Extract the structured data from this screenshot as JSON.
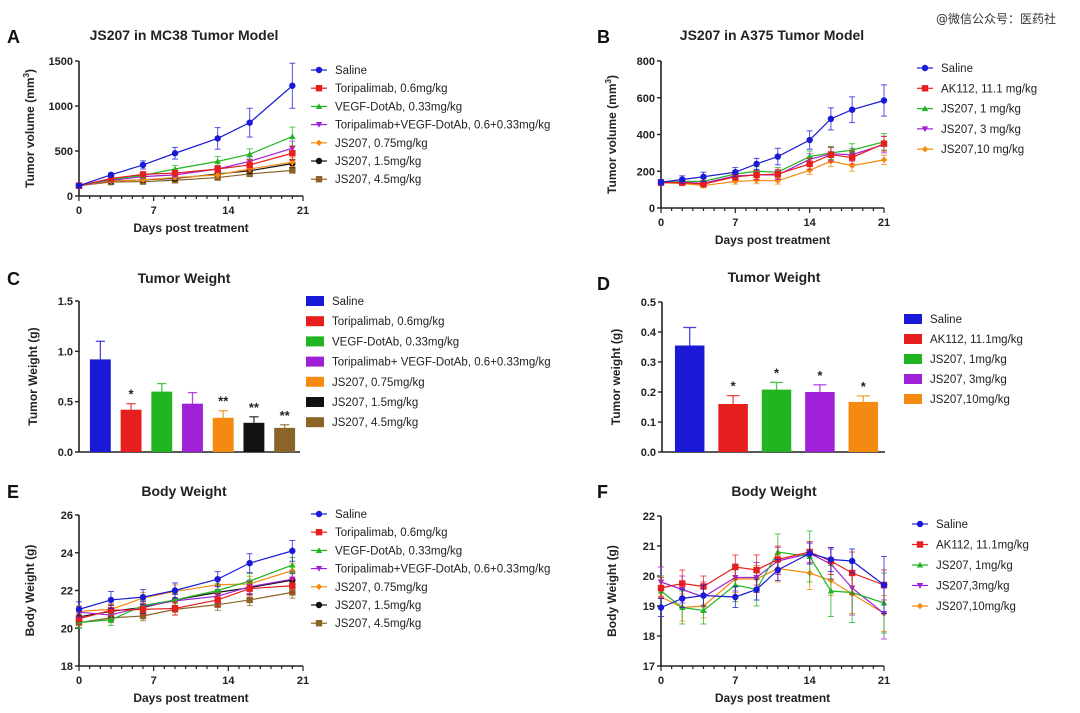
{
  "watermark": "@微信公众号：医药社",
  "colors": {
    "blue": "#1a1ad6",
    "red": "#e61e1e",
    "green": "#22b522",
    "purple": "#a020d8",
    "orange": "#f58a10",
    "black": "#111111",
    "brown": "#8b6428"
  },
  "chart_data": [
    {
      "panel": "A",
      "type": "line",
      "title": "JS207 in MC38 Tumor Model",
      "xlabel": "Days post treatment",
      "ylabel": "Tumor volume (mm³)",
      "xlim": [
        0,
        21
      ],
      "ylim": [
        0,
        1500
      ],
      "xticks": [
        0,
        7,
        14,
        21
      ],
      "yticks": [
        0,
        500,
        1000,
        1500
      ],
      "grid": false,
      "legend": "right",
      "x": [
        0,
        3,
        6,
        9,
        13,
        16,
        20
      ],
      "series": [
        {
          "name": "Saline",
          "color": "blue",
          "marker": "circle",
          "values": [
            115,
            235,
            345,
            475,
            640,
            815,
            1225
          ],
          "err": [
            15,
            20,
            45,
            65,
            120,
            160,
            250
          ]
        },
        {
          "name": "Toripalimab, 0.6mg/kg",
          "color": "red",
          "marker": "square",
          "values": [
            115,
            195,
            240,
            255,
            300,
            345,
            475
          ],
          "err": [
            10,
            20,
            25,
            30,
            40,
            55,
            80
          ]
        },
        {
          "name": "VEGF-DotAb, 0.33mg/kg",
          "color": "green",
          "marker": "triangle",
          "values": [
            115,
            185,
            230,
            300,
            385,
            465,
            660
          ],
          "err": [
            10,
            20,
            30,
            40,
            55,
            60,
            105
          ]
        },
        {
          "name": "Toripalimab+VEGF-DotAb, 0.6+0.33mg/kg",
          "color": "purple",
          "marker": "triangle-down",
          "values": [
            115,
            175,
            215,
            235,
            300,
            385,
            530
          ],
          "err": [
            10,
            15,
            20,
            25,
            35,
            50,
            80
          ]
        },
        {
          "name": "JS207, 0.75mg/kg",
          "color": "orange",
          "marker": "diamond",
          "values": [
            115,
            165,
            180,
            205,
            235,
            300,
            375
          ],
          "err": [
            10,
            15,
            15,
            20,
            25,
            35,
            50
          ]
        },
        {
          "name": "JS207, 1.5mg/kg",
          "color": "black",
          "marker": "circle",
          "values": [
            115,
            165,
            180,
            195,
            245,
            280,
            360
          ],
          "err": [
            10,
            12,
            15,
            18,
            22,
            30,
            45
          ]
        },
        {
          "name": "JS207, 4.5mg/kg",
          "color": "brown",
          "marker": "square",
          "values": [
            115,
            155,
            160,
            175,
            205,
            245,
            285
          ],
          "err": [
            8,
            10,
            12,
            15,
            18,
            25,
            30
          ]
        }
      ]
    },
    {
      "panel": "B",
      "type": "line",
      "title": "JS207 in A375 Tumor Model",
      "xlabel": "Days post treatment",
      "ylabel": "Tumor volume (mm³)",
      "xlim": [
        0,
        21
      ],
      "ylim": [
        0,
        800
      ],
      "xticks": [
        0,
        7,
        14,
        21
      ],
      "yticks": [
        0,
        200,
        400,
        600,
        800
      ],
      "grid": false,
      "legend": "right",
      "x": [
        0,
        2,
        4,
        7,
        9,
        11,
        14,
        16,
        18,
        21
      ],
      "series": [
        {
          "name": "Saline",
          "color": "blue",
          "marker": "circle",
          "values": [
            140,
            155,
            170,
            195,
            240,
            280,
            370,
            485,
            535,
            585
          ],
          "err": [
            15,
            20,
            25,
            25,
            30,
            45,
            50,
            60,
            70,
            85
          ]
        },
        {
          "name": "AK112, 11.1 mg/kg",
          "color": "red",
          "marker": "square",
          "values": [
            138,
            138,
            130,
            170,
            180,
            185,
            240,
            290,
            275,
            350
          ],
          "err": [
            10,
            12,
            15,
            20,
            25,
            25,
            30,
            40,
            35,
            40
          ]
        },
        {
          "name": "JS207, 1 mg/kg",
          "color": "green",
          "marker": "triangle",
          "values": [
            138,
            145,
            145,
            185,
            200,
            195,
            280,
            300,
            315,
            360
          ],
          "err": [
            10,
            12,
            15,
            20,
            25,
            25,
            30,
            35,
            35,
            45
          ]
        },
        {
          "name": "JS207, 3 mg/kg",
          "color": "purple",
          "marker": "triangle-down",
          "values": [
            138,
            140,
            135,
            175,
            180,
            180,
            265,
            295,
            290,
            345
          ],
          "err": [
            10,
            12,
            15,
            20,
            25,
            25,
            30,
            35,
            35,
            45
          ]
        },
        {
          "name": "JS207,10 mg/kg",
          "color": "orange",
          "marker": "diamond",
          "values": [
            138,
            133,
            122,
            145,
            150,
            148,
            205,
            255,
            230,
            262
          ],
          "err": [
            8,
            10,
            12,
            15,
            18,
            18,
            22,
            30,
            30,
            25
          ]
        }
      ]
    },
    {
      "panel": "C",
      "type": "bar",
      "title": "Tumor Weight",
      "xlabel": "",
      "ylabel": "Tumor Weight (g)",
      "ylim": [
        0,
        1.5
      ],
      "yticks": [
        0.0,
        0.5,
        1.0,
        1.5
      ],
      "grid": false,
      "legend": "right",
      "categories": [
        "Saline",
        "Toripalimab, 0.6mg/kg",
        "VEGF-DotAb, 0.33mg/kg",
        "Toripalimab+ VEGF-DotAb, 0.6+0.33mg/kg",
        "JS207, 0.75mg/kg",
        "JS207, 1.5mg/kg",
        "JS207, 4.5mg/kg"
      ],
      "colors": [
        "blue",
        "red",
        "green",
        "purple",
        "orange",
        "black",
        "brown"
      ],
      "values": [
        0.92,
        0.42,
        0.6,
        0.48,
        0.34,
        0.29,
        0.24
      ],
      "err": [
        0.18,
        0.06,
        0.08,
        0.11,
        0.07,
        0.06,
        0.03
      ],
      "annotations": [
        "",
        "*",
        "",
        "",
        "**",
        "**",
        "**"
      ]
    },
    {
      "panel": "D",
      "type": "bar",
      "title": "Tumor Weight",
      "xlabel": "",
      "ylabel": "Tumor weight (g)",
      "ylim": [
        0,
        0.5
      ],
      "yticks": [
        0.0,
        0.1,
        0.2,
        0.3,
        0.4,
        0.5
      ],
      "grid": false,
      "legend": "right",
      "categories": [
        "Saline",
        "AK112, 11.1mg/kg",
        "JS207, 1mg/kg",
        "JS207, 3mg/kg",
        "JS207,10mg/kg"
      ],
      "colors": [
        "blue",
        "red",
        "green",
        "purple",
        "orange"
      ],
      "values": [
        0.355,
        0.16,
        0.208,
        0.2,
        0.167
      ],
      "err": [
        0.06,
        0.028,
        0.024,
        0.024,
        0.02
      ],
      "annotations": [
        "",
        "*",
        "*",
        "*",
        "*"
      ]
    },
    {
      "panel": "E",
      "type": "line",
      "title": "Body Weight",
      "xlabel": "Days post treatment",
      "ylabel": "Body Weight (g)",
      "xlim": [
        0,
        21
      ],
      "ylim": [
        18,
        26
      ],
      "xticks": [
        0,
        7,
        14,
        21
      ],
      "yticks": [
        18,
        20,
        22,
        24,
        26
      ],
      "grid": false,
      "legend": "right",
      "x": [
        0,
        3,
        6,
        9,
        13,
        16,
        20
      ],
      "series": [
        {
          "name": "Saline",
          "color": "blue",
          "marker": "circle",
          "values": [
            21.0,
            21.5,
            21.65,
            22.0,
            22.6,
            23.45,
            24.1
          ],
          "err": [
            0.4,
            0.45,
            0.4,
            0.4,
            0.4,
            0.5,
            0.55
          ]
        },
        {
          "name": "Toripalimab, 0.6mg/kg",
          "color": "red",
          "marker": "square",
          "values": [
            20.5,
            20.95,
            21.0,
            21.05,
            21.5,
            22.1,
            22.25
          ],
          "err": [
            0.3,
            0.3,
            0.3,
            0.35,
            0.35,
            0.35,
            0.35
          ]
        },
        {
          "name": "VEGF-DotAb, 0.33mg/kg",
          "color": "green",
          "marker": "triangle",
          "values": [
            20.3,
            20.45,
            21.2,
            21.5,
            22.0,
            22.5,
            23.35
          ],
          "err": [
            0.3,
            0.3,
            0.3,
            0.35,
            0.35,
            0.4,
            0.4
          ]
        },
        {
          "name": "Toripalimab+VEGF-DotAb, 0.6+0.33mg/kg",
          "color": "purple",
          "marker": "triangle-down",
          "values": [
            20.85,
            20.7,
            21.15,
            21.45,
            21.7,
            22.2,
            22.6
          ],
          "err": [
            0.3,
            0.3,
            0.3,
            0.35,
            0.35,
            0.35,
            0.4
          ]
        },
        {
          "name": "JS207, 0.75mg/kg",
          "color": "orange",
          "marker": "diamond",
          "values": [
            20.9,
            21.0,
            21.6,
            21.95,
            22.3,
            22.35,
            23.05
          ],
          "err": [
            0.3,
            0.3,
            0.3,
            0.35,
            0.35,
            0.4,
            0.4
          ]
        },
        {
          "name": "JS207, 1.5mg/kg",
          "color": "black",
          "marker": "circle",
          "values": [
            20.6,
            20.9,
            21.1,
            21.5,
            21.9,
            22.15,
            22.55
          ],
          "err": [
            0.3,
            0.3,
            0.3,
            0.3,
            0.35,
            0.35,
            0.35
          ]
        },
        {
          "name": "JS207, 4.5mg/kg",
          "color": "brown",
          "marker": "square",
          "values": [
            20.3,
            20.55,
            20.65,
            21.0,
            21.25,
            21.5,
            21.9
          ],
          "err": [
            0.25,
            0.25,
            0.25,
            0.3,
            0.3,
            0.3,
            0.3
          ]
        }
      ]
    },
    {
      "panel": "F",
      "type": "line",
      "title": "Body Weight",
      "xlabel": "Days post treatment",
      "ylabel": "Body Weight (g)",
      "xlim": [
        0,
        21
      ],
      "ylim": [
        17,
        22
      ],
      "xticks": [
        0,
        7,
        14,
        21
      ],
      "yticks": [
        17,
        18,
        19,
        20,
        21,
        22
      ],
      "grid": false,
      "legend": "right",
      "x": [
        0,
        2,
        4,
        7,
        9,
        11,
        14,
        16,
        18,
        21
      ],
      "series": [
        {
          "name": "Saline",
          "color": "blue",
          "marker": "circle",
          "values": [
            18.95,
            19.25,
            19.35,
            19.3,
            19.55,
            20.2,
            20.75,
            20.55,
            20.5,
            19.7
          ],
          "err": [
            0.3,
            0.3,
            0.35,
            0.35,
            0.35,
            0.35,
            0.35,
            0.4,
            0.4,
            0.95
          ]
        },
        {
          "name": "AK112, 11.1mg/kg",
          "color": "red",
          "marker": "square",
          "values": [
            19.6,
            19.75,
            19.65,
            20.3,
            20.2,
            20.55,
            20.8,
            20.5,
            20.1,
            19.7
          ],
          "err": [
            0.35,
            0.45,
            0.35,
            0.4,
            0.5,
            0.45,
            0.35,
            0.45,
            0.7,
            0.5
          ]
        },
        {
          "name": "JS207, 1mg/kg",
          "color": "green",
          "marker": "triangle",
          "values": [
            19.5,
            18.95,
            18.85,
            19.7,
            19.55,
            20.8,
            20.65,
            19.5,
            19.45,
            19.1
          ],
          "err": [
            0.5,
            0.55,
            0.45,
            0.55,
            0.55,
            0.6,
            0.85,
            0.85,
            1.0,
            1.0
          ]
        },
        {
          "name": "JS207,3mg/kg",
          "color": "purple",
          "marker": "triangle-down",
          "values": [
            19.8,
            19.55,
            19.3,
            19.95,
            19.95,
            20.5,
            20.75,
            20.4,
            19.6,
            18.75
          ],
          "err": [
            0.5,
            0.45,
            0.5,
            0.45,
            0.5,
            0.45,
            0.35,
            0.5,
            0.9,
            0.85
          ]
        },
        {
          "name": "JS207,10mg/kg",
          "color": "orange",
          "marker": "diamond",
          "values": [
            19.3,
            18.95,
            19.0,
            19.9,
            19.9,
            20.25,
            20.1,
            19.85,
            19.4,
            18.75
          ],
          "err": [
            0.35,
            0.45,
            0.4,
            0.45,
            0.45,
            0.45,
            0.55,
            0.5,
            0.65,
            0.6
          ]
        }
      ]
    }
  ],
  "panel_labels": [
    "A",
    "B",
    "C",
    "D",
    "E",
    "F"
  ]
}
